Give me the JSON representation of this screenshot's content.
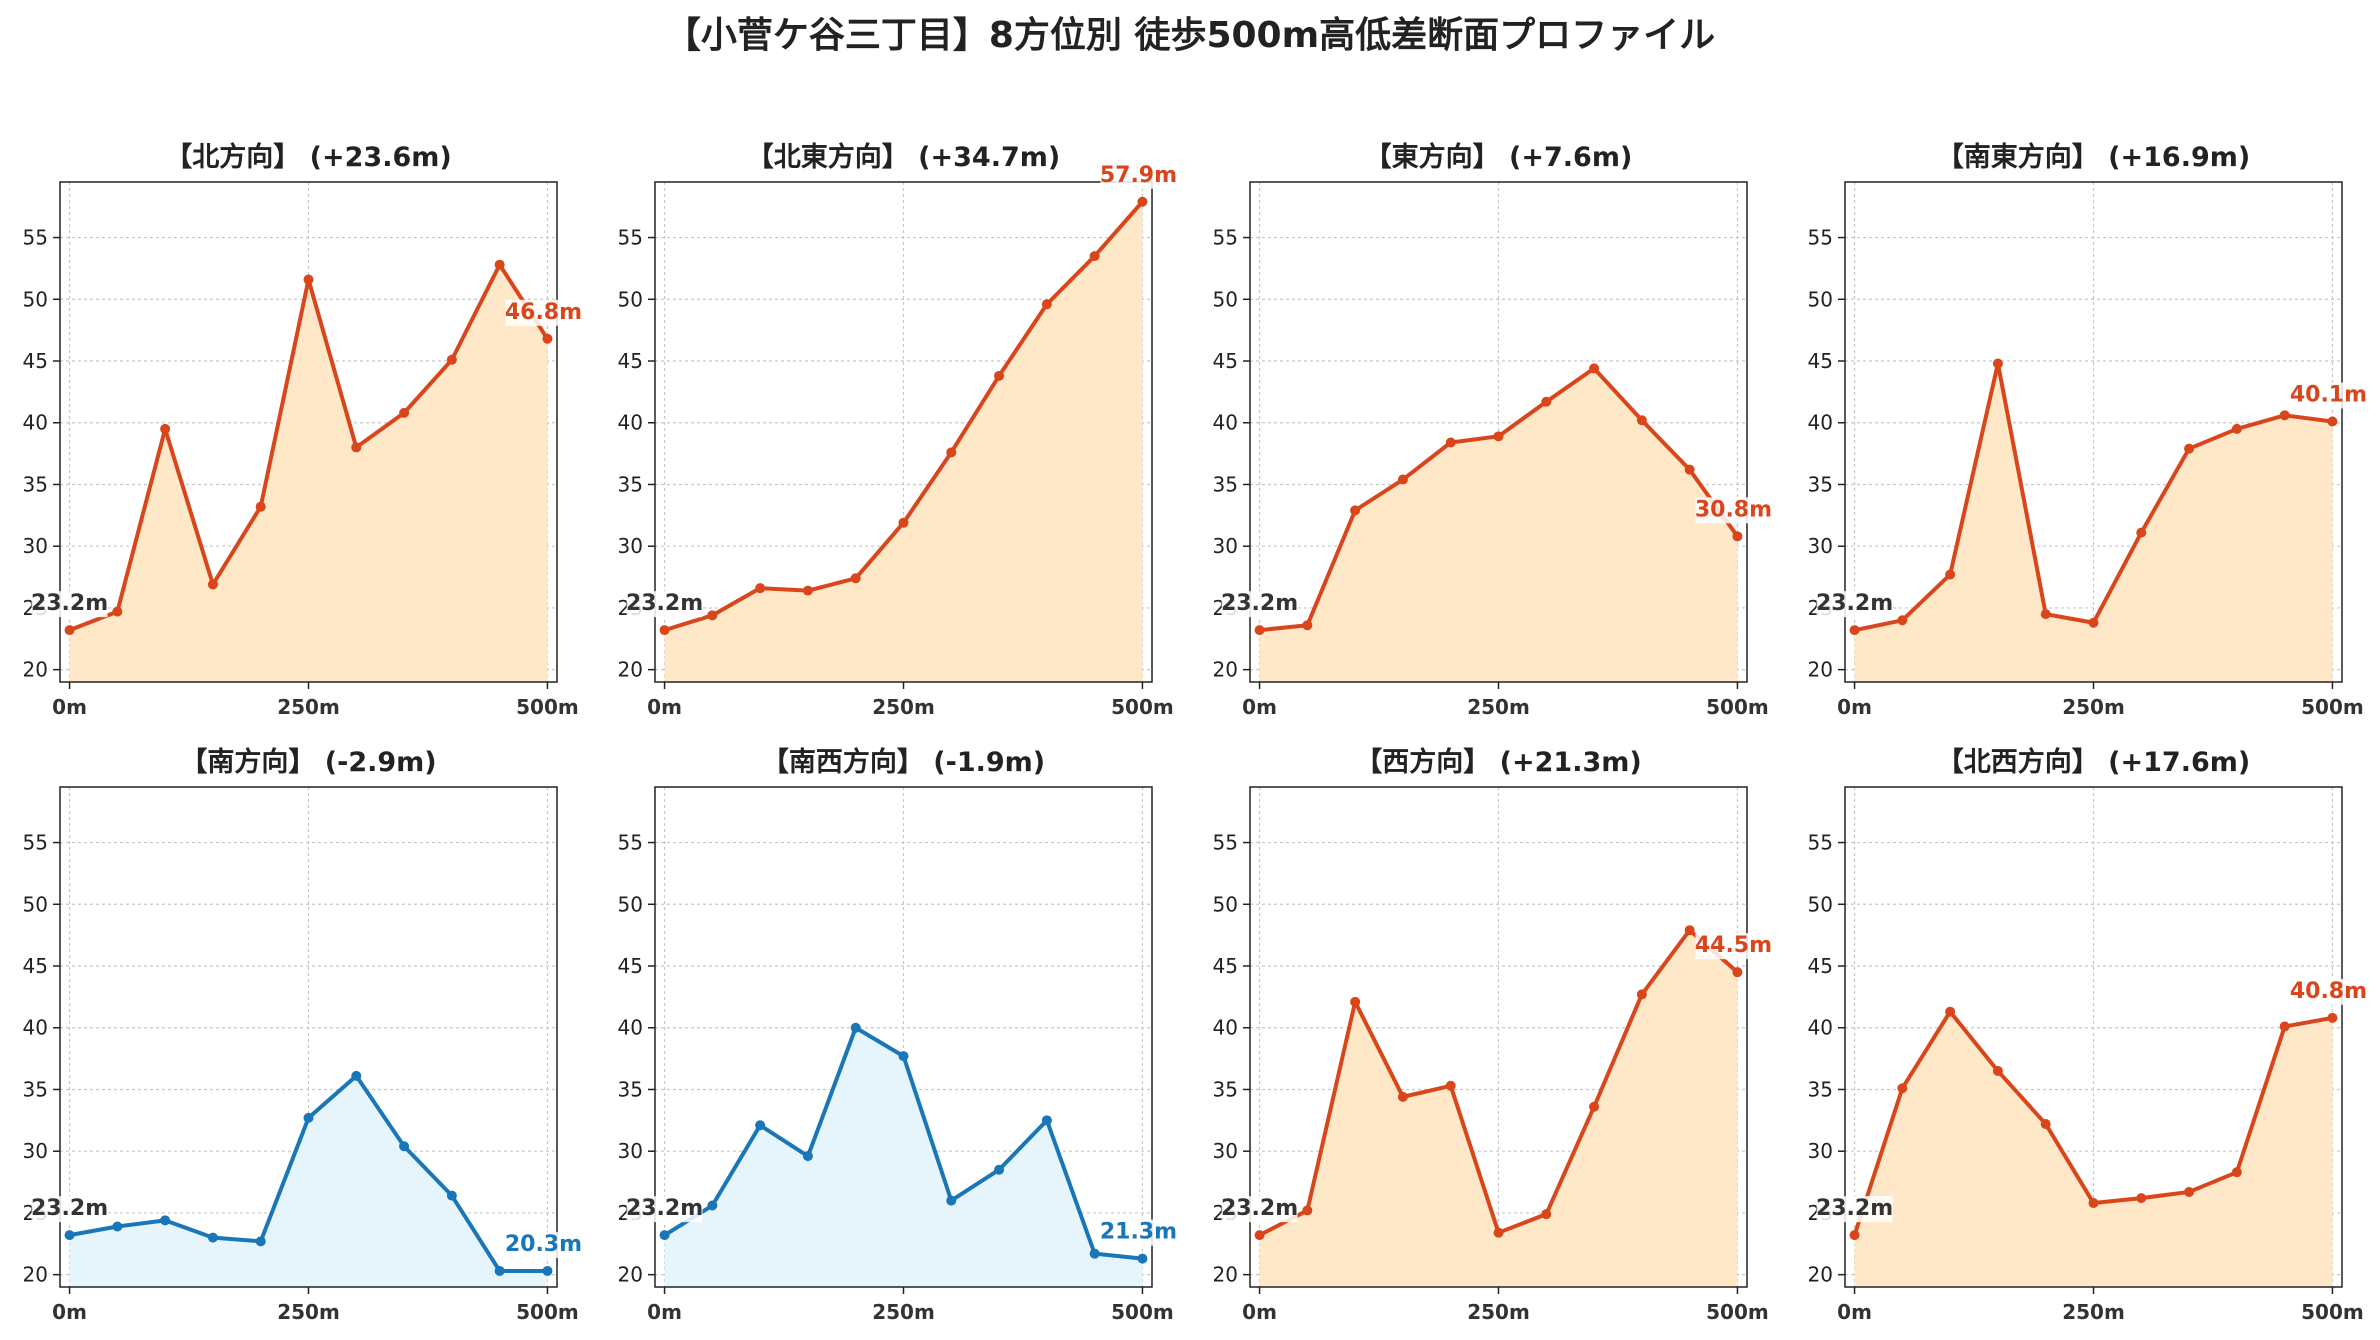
{
  "title": "【小菅ケ谷三丁目】8方位別 徒歩500m高低差断面プロファイル",
  "colors": {
    "up_line": "#d9461c",
    "up_fill": "#ffe8c8",
    "down_line": "#1976b8",
    "down_fill": "#e6f5fc"
  },
  "chart_data": [
    {
      "type": "area",
      "title": "【北方向】 (+23.6m)",
      "trend": "up",
      "x": [
        0,
        50,
        100,
        150,
        200,
        250,
        300,
        350,
        400,
        450,
        500
      ],
      "y": [
        23.2,
        24.7,
        39.5,
        26.9,
        33.2,
        51.6,
        38.0,
        40.8,
        45.1,
        52.8,
        46.8
      ],
      "start_label": "23.2m",
      "end_label": "46.8m",
      "xticks": [
        0,
        250,
        500
      ],
      "xtick_labels": [
        "0m",
        "250m",
        "500m"
      ],
      "yticks": [
        20,
        25,
        30,
        35,
        40,
        45,
        50,
        55
      ],
      "ylim": [
        19,
        59.5
      ],
      "xlim": [
        -10,
        510
      ],
      "grid": true
    },
    {
      "type": "area",
      "title": "【北東方向】 (+34.7m)",
      "trend": "up",
      "x": [
        0,
        50,
        100,
        150,
        200,
        250,
        300,
        350,
        400,
        450,
        500
      ],
      "y": [
        23.2,
        24.4,
        26.6,
        26.4,
        27.4,
        31.9,
        37.6,
        43.8,
        49.6,
        53.5,
        57.9
      ],
      "start_label": "23.2m",
      "end_label": "57.9m",
      "xticks": [
        0,
        250,
        500
      ],
      "xtick_labels": [
        "0m",
        "250m",
        "500m"
      ],
      "yticks": [
        20,
        25,
        30,
        35,
        40,
        45,
        50,
        55
      ],
      "ylim": [
        19,
        59.5
      ],
      "xlim": [
        -10,
        510
      ],
      "grid": true
    },
    {
      "type": "area",
      "title": "【東方向】 (+7.6m)",
      "trend": "up",
      "x": [
        0,
        50,
        100,
        150,
        200,
        250,
        300,
        350,
        400,
        450,
        500
      ],
      "y": [
        23.2,
        23.6,
        32.9,
        35.4,
        38.4,
        38.9,
        41.7,
        44.4,
        40.2,
        36.2,
        30.8
      ],
      "start_label": "23.2m",
      "end_label": "30.8m",
      "xticks": [
        0,
        250,
        500
      ],
      "xtick_labels": [
        "0m",
        "250m",
        "500m"
      ],
      "yticks": [
        20,
        25,
        30,
        35,
        40,
        45,
        50,
        55
      ],
      "ylim": [
        19,
        59.5
      ],
      "xlim": [
        -10,
        510
      ],
      "grid": true
    },
    {
      "type": "area",
      "title": "【南東方向】 (+16.9m)",
      "trend": "up",
      "x": [
        0,
        50,
        100,
        150,
        200,
        250,
        300,
        350,
        400,
        450,
        500
      ],
      "y": [
        23.2,
        24.0,
        27.7,
        44.8,
        24.5,
        23.8,
        31.1,
        37.9,
        39.5,
        40.6,
        40.1
      ],
      "start_label": "23.2m",
      "end_label": "40.1m",
      "xticks": [
        0,
        250,
        500
      ],
      "xtick_labels": [
        "0m",
        "250m",
        "500m"
      ],
      "yticks": [
        20,
        25,
        30,
        35,
        40,
        45,
        50,
        55
      ],
      "ylim": [
        19,
        59.5
      ],
      "xlim": [
        -10,
        510
      ],
      "grid": true
    },
    {
      "type": "area",
      "title": "【南方向】 (-2.9m)",
      "trend": "down",
      "x": [
        0,
        50,
        100,
        150,
        200,
        250,
        300,
        350,
        400,
        450,
        500
      ],
      "y": [
        23.2,
        23.9,
        24.4,
        23.0,
        22.7,
        32.7,
        36.1,
        30.4,
        26.4,
        20.3,
        20.3
      ],
      "start_label": "23.2m",
      "end_label": "20.3m",
      "xticks": [
        0,
        250,
        500
      ],
      "xtick_labels": [
        "0m",
        "250m",
        "500m"
      ],
      "yticks": [
        20,
        25,
        30,
        35,
        40,
        45,
        50,
        55
      ],
      "ylim": [
        19,
        59.5
      ],
      "xlim": [
        -10,
        510
      ],
      "grid": true
    },
    {
      "type": "area",
      "title": "【南西方向】 (-1.9m)",
      "trend": "down",
      "x": [
        0,
        50,
        100,
        150,
        200,
        250,
        300,
        350,
        400,
        450,
        500
      ],
      "y": [
        23.2,
        25.6,
        32.1,
        29.6,
        40.0,
        37.7,
        26.0,
        28.5,
        32.5,
        21.7,
        21.3
      ],
      "start_label": "23.2m",
      "end_label": "21.3m",
      "xticks": [
        0,
        250,
        500
      ],
      "xtick_labels": [
        "0m",
        "250m",
        "500m"
      ],
      "yticks": [
        20,
        25,
        30,
        35,
        40,
        45,
        50,
        55
      ],
      "ylim": [
        19,
        59.5
      ],
      "xlim": [
        -10,
        510
      ],
      "grid": true
    },
    {
      "type": "area",
      "title": "【西方向】 (+21.3m)",
      "trend": "up",
      "x": [
        0,
        50,
        100,
        150,
        200,
        250,
        300,
        350,
        400,
        450,
        500
      ],
      "y": [
        23.2,
        25.2,
        42.1,
        34.4,
        35.3,
        23.4,
        24.9,
        33.6,
        42.7,
        47.9,
        44.5
      ],
      "start_label": "23.2m",
      "end_label": "44.5m",
      "xticks": [
        0,
        250,
        500
      ],
      "xtick_labels": [
        "0m",
        "250m",
        "500m"
      ],
      "yticks": [
        20,
        25,
        30,
        35,
        40,
        45,
        50,
        55
      ],
      "ylim": [
        19,
        59.5
      ],
      "xlim": [
        -10,
        510
      ],
      "grid": true
    },
    {
      "type": "area",
      "title": "【北西方向】 (+17.6m)",
      "trend": "up",
      "x": [
        0,
        50,
        100,
        150,
        200,
        250,
        300,
        350,
        400,
        450,
        500
      ],
      "y": [
        23.2,
        35.1,
        41.3,
        36.5,
        32.2,
        25.8,
        26.2,
        26.7,
        28.3,
        40.1,
        40.8
      ],
      "start_label": "23.2m",
      "end_label": "40.8m",
      "xticks": [
        0,
        250,
        500
      ],
      "xtick_labels": [
        "0m",
        "250m",
        "500m"
      ],
      "yticks": [
        20,
        25,
        30,
        35,
        40,
        45,
        50,
        55
      ],
      "ylim": [
        19,
        59.5
      ],
      "xlim": [
        -10,
        510
      ],
      "grid": true
    }
  ]
}
